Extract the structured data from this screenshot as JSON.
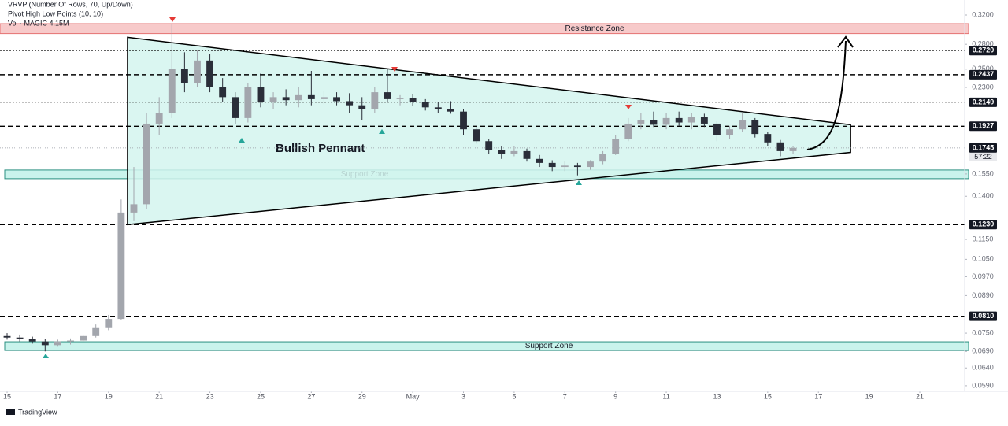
{
  "chart_data": {
    "type": "candlestick",
    "log_scale": true,
    "indicators": [
      "VRVP (Number Of Rows, 70, Up/Down)",
      "Pivot High Low Points (10, 10)",
      "Vol · MAGIC  4.15M"
    ],
    "brand": "TradingView",
    "up_color": "#a3a6ad",
    "down_color": "#2a2e39",
    "x": [
      0,
      0.5,
      1,
      1.5,
      2,
      2.5,
      3,
      3.5,
      4,
      4.5,
      5,
      5.5,
      6,
      6.5,
      7,
      7.5,
      8,
      8.5,
      9,
      9.5,
      10,
      10.5,
      11,
      11.5,
      12,
      12.5,
      13,
      13.5,
      14,
      14.5,
      15,
      15.5,
      16,
      16.5,
      17,
      17.5,
      18,
      18.5,
      19,
      19.5,
      20,
      20.5,
      21,
      21.5,
      22,
      22.5,
      23,
      23.5,
      24,
      24.5,
      25,
      25.5,
      26,
      26.5,
      27,
      27.5,
      28,
      28.5,
      29,
      29.5,
      30,
      30.5,
      31
    ],
    "open": [
      0.074,
      0.0735,
      0.073,
      0.0722,
      0.071,
      0.0722,
      0.0725,
      0.074,
      0.077,
      0.08,
      0.13,
      0.135,
      0.195,
      0.205,
      0.25,
      0.235,
      0.26,
      0.23,
      0.22,
      0.2,
      0.23,
      0.215,
      0.22,
      0.217,
      0.222,
      0.218,
      0.22,
      0.216,
      0.212,
      0.208,
      0.225,
      0.218,
      0.219,
      0.215,
      0.21,
      0.208,
      0.206,
      0.19,
      0.18,
      0.173,
      0.17,
      0.172,
      0.166,
      0.163,
      0.16,
      0.161,
      0.16,
      0.164,
      0.17,
      0.182,
      0.195,
      0.198,
      0.194,
      0.2,
      0.196,
      0.201,
      0.195,
      0.185,
      0.19,
      0.198,
      0.186,
      0.179,
      0.172
    ],
    "high": [
      0.075,
      0.0745,
      0.0738,
      0.073,
      0.0728,
      0.0732,
      0.0745,
      0.078,
      0.0815,
      0.138,
      0.16,
      0.205,
      0.22,
      0.3076,
      0.27,
      0.272,
      0.268,
      0.24,
      0.225,
      0.235,
      0.245,
      0.225,
      0.228,
      0.23,
      0.248,
      0.226,
      0.225,
      0.224,
      0.22,
      0.23,
      0.25,
      0.222,
      0.223,
      0.218,
      0.215,
      0.216,
      0.208,
      0.193,
      0.182,
      0.176,
      0.176,
      0.174,
      0.169,
      0.165,
      0.164,
      0.163,
      0.165,
      0.172,
      0.185,
      0.2,
      0.205,
      0.206,
      0.205,
      0.206,
      0.205,
      0.204,
      0.197,
      0.193,
      0.205,
      0.2,
      0.188,
      0.181,
      0.176
    ],
    "low": [
      0.0728,
      0.0722,
      0.0715,
      0.069,
      0.0705,
      0.0712,
      0.0718,
      0.0735,
      0.076,
      0.0795,
      0.125,
      0.132,
      0.185,
      0.2,
      0.225,
      0.23,
      0.225,
      0.215,
      0.195,
      0.196,
      0.21,
      0.208,
      0.212,
      0.21,
      0.212,
      0.213,
      0.212,
      0.205,
      0.198,
      0.205,
      0.215,
      0.212,
      0.211,
      0.207,
      0.205,
      0.204,
      0.185,
      0.178,
      0.17,
      0.166,
      0.168,
      0.164,
      0.16,
      0.157,
      0.157,
      0.154,
      0.158,
      0.162,
      0.169,
      0.18,
      0.19,
      0.192,
      0.19,
      0.193,
      0.19,
      0.192,
      0.18,
      0.182,
      0.188,
      0.183,
      0.176,
      0.168,
      0.17
    ],
    "close": [
      0.0735,
      0.073,
      0.0722,
      0.071,
      0.0722,
      0.0725,
      0.074,
      0.077,
      0.08,
      0.13,
      0.135,
      0.195,
      0.205,
      0.25,
      0.235,
      0.26,
      0.23,
      0.22,
      0.2,
      0.23,
      0.215,
      0.22,
      0.217,
      0.222,
      0.218,
      0.22,
      0.216,
      0.212,
      0.208,
      0.225,
      0.218,
      0.219,
      0.215,
      0.21,
      0.208,
      0.206,
      0.19,
      0.18,
      0.173,
      0.17,
      0.172,
      0.166,
      0.163,
      0.16,
      0.161,
      0.16,
      0.164,
      0.17,
      0.182,
      0.195,
      0.198,
      0.194,
      0.2,
      0.196,
      0.201,
      0.195,
      0.185,
      0.19,
      0.198,
      0.186,
      0.179,
      0.172,
      0.1745
    ],
    "xlim": [
      -0.28,
      37.77
    ],
    "ylim": [
      0.0569,
      0.3426
    ],
    "xticks": [
      {
        "value": 0,
        "label": "15"
      },
      {
        "value": 2,
        "label": "17"
      },
      {
        "value": 4,
        "label": "19"
      },
      {
        "value": 6,
        "label": "21"
      },
      {
        "value": 8,
        "label": "23"
      },
      {
        "value": 10,
        "label": "25"
      },
      {
        "value": 12,
        "label": "27"
      },
      {
        "value": 14,
        "label": "29"
      },
      {
        "value": 16,
        "label": "May"
      },
      {
        "value": 18,
        "label": "3"
      },
      {
        "value": 20,
        "label": "5"
      },
      {
        "value": 22,
        "label": "7"
      },
      {
        "value": 24,
        "label": "9"
      },
      {
        "value": 26,
        "label": "11"
      },
      {
        "value": 28,
        "label": "13"
      },
      {
        "value": 30,
        "label": "15"
      },
      {
        "value": 32,
        "label": "17"
      },
      {
        "value": 34,
        "label": "19"
      },
      {
        "value": 36,
        "label": "21"
      }
    ],
    "yticks": [
      {
        "value": 0.32,
        "label": "0.3200"
      },
      {
        "value": 0.28,
        "label": "0.2800"
      },
      {
        "value": 0.25,
        "label": "0.2500"
      },
      {
        "value": 0.23,
        "label": "0.2300"
      },
      {
        "value": 0.155,
        "label": "0.1550"
      },
      {
        "value": 0.14,
        "label": "0.1400"
      },
      {
        "value": 0.115,
        "label": "0.1150"
      },
      {
        "value": 0.105,
        "label": "0.1050"
      },
      {
        "value": 0.097,
        "label": "0.0970"
      },
      {
        "value": 0.089,
        "label": "0.0890"
      },
      {
        "value": 0.075,
        "label": "0.0750"
      },
      {
        "value": 0.069,
        "label": "0.0690"
      },
      {
        "value": 0.064,
        "label": "0.0640"
      },
      {
        "value": 0.059,
        "label": "0.0590"
      }
    ],
    "price_lines": [
      {
        "value": 0.272,
        "label": "0.2720",
        "style": "dotted"
      },
      {
        "value": 0.2437,
        "label": "0.2437",
        "style": "dashed"
      },
      {
        "value": 0.2149,
        "label": "0.2149",
        "style": "dotted"
      },
      {
        "value": 0.1927,
        "label": "0.1927",
        "style": "dashed"
      },
      {
        "value": 0.123,
        "label": "0.1230",
        "style": "dashed"
      },
      {
        "value": 0.081,
        "label": "0.0810",
        "style": "dashed"
      }
    ],
    "current_price": {
      "value": 0.1745,
      "label": "0.1745",
      "countdown": "57:22"
    },
    "zones": [
      {
        "label": "Resistance Zone",
        "range": [
          0.294,
          0.3076
        ],
        "color": "#f7caca"
      },
      {
        "label": "Support Zone",
        "range": [
          0.1517,
          0.1578
        ],
        "color": "#c9f3ec"
      },
      {
        "label": "Support Zone",
        "range": [
          0.0693,
          0.0721
        ],
        "color": "#c9f3ec"
      }
    ],
    "pennant": {
      "label": "Bullish Pennant",
      "points": [
        [
          4.75,
          0.289
        ],
        [
          33.27,
          0.194
        ],
        [
          33.27,
          0.171
        ],
        [
          4.75,
          0.123
        ]
      ]
    }
  }
}
